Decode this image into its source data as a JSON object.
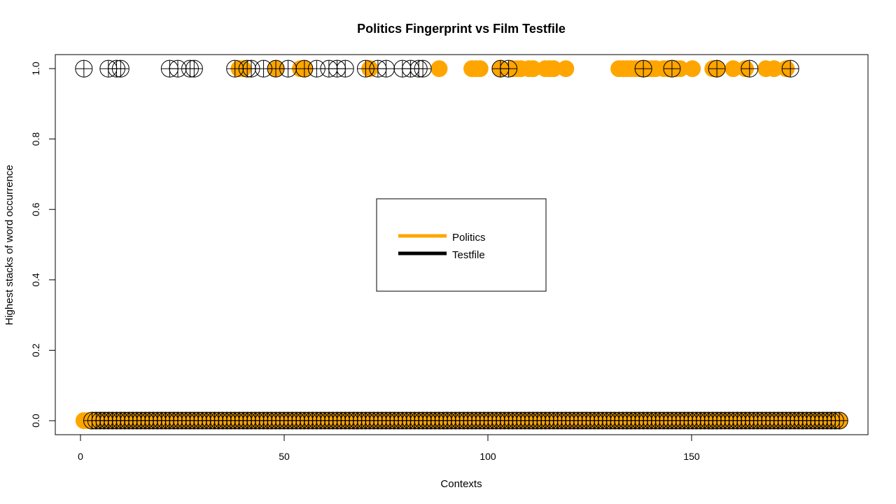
{
  "chart_data": {
    "type": "scatter",
    "title": "Politics Fingerprint vs Film Testfile",
    "xlabel": "Contexts",
    "ylabel": "Highest stacks of word occurrence",
    "xlim": [
      -6,
      193
    ],
    "ylim": [
      -0.04,
      1.04
    ],
    "x_ticks": [
      "0",
      "50",
      "100",
      "150"
    ],
    "y_ticks": [
      "0.0",
      "0.2",
      "0.4",
      "0.6",
      "0.8",
      "1.0"
    ],
    "legend_position": "center",
    "series": [
      {
        "name": "Politics",
        "color": "#FFA500",
        "marker": "filled-circle",
        "points_at_1": [
          39,
          40,
          48,
          54,
          55,
          71,
          88,
          96,
          97,
          98,
          103,
          106,
          107,
          108,
          110,
          111,
          114,
          115,
          116,
          119,
          132,
          133,
          134,
          135,
          136,
          137,
          138,
          139,
          140,
          141,
          143,
          144,
          146,
          147,
          150,
          155,
          156,
          160,
          163,
          168,
          170,
          173
        ],
        "range_at_0": [
          1,
          186
        ]
      },
      {
        "name": "Testfile",
        "color": "#000000",
        "marker": "circle-plus",
        "points_at_1": [
          1,
          7,
          9,
          10,
          22,
          24,
          27,
          28,
          38,
          41,
          42,
          45,
          48,
          51,
          55,
          58,
          61,
          63,
          65,
          70,
          73,
          75,
          79,
          81,
          83,
          84,
          103,
          105,
          138,
          145,
          156,
          164,
          174
        ],
        "range_at_0": [
          3,
          186
        ]
      }
    ]
  }
}
